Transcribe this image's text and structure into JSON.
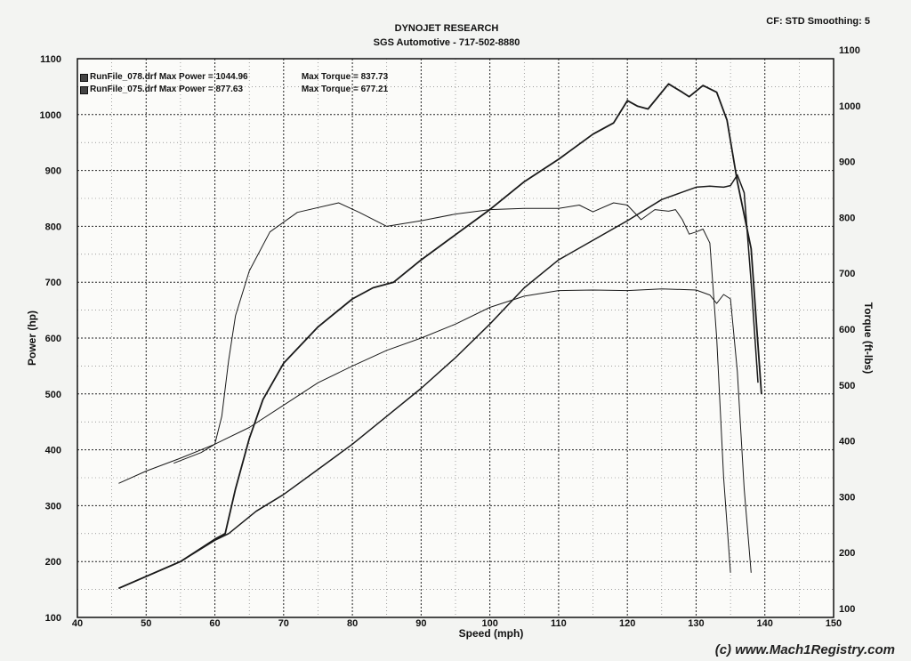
{
  "header": {
    "title": "DYNOJET RESEARCH",
    "subtitle": "SGS Automotive - 717-502-8880",
    "cf_label": "CF: STD  Smoothing: 5"
  },
  "legend": {
    "items": [
      {
        "file": "RunFile_078.drf",
        "power": "Max Power = 1044.96",
        "torque": "Max Torque = 837.73"
      },
      {
        "file": "RunFile_075.drf",
        "power": "Max Power = 877.63",
        "torque": "Max Torque = 677.21"
      }
    ]
  },
  "watermark": "(c) www.Mach1Registry.com",
  "chart_data": {
    "type": "line",
    "title": "DYNOJET RESEARCH",
    "subtitle": "SGS Automotive - 717-502-8880",
    "xlabel": "Speed (mph)",
    "ylabel": "Power (hp)",
    "y2label": "Torque (ft-lbs)",
    "xlim": [
      40,
      150
    ],
    "ylim": [
      100,
      1100
    ],
    "y2lim": [
      100,
      1100
    ],
    "xticks": [
      40,
      50,
      60,
      70,
      80,
      90,
      100,
      110,
      120,
      130,
      140,
      150
    ],
    "yticks": [
      100,
      200,
      300,
      400,
      500,
      600,
      700,
      800,
      900,
      1000,
      1100
    ],
    "y2ticks": [
      100,
      200,
      300,
      400,
      500,
      600,
      700,
      800,
      900,
      1000,
      1100
    ],
    "grid": true,
    "legend_position": "top-left",
    "series": [
      {
        "name": "RunFile_078.drf Power",
        "axis": "left",
        "style": "solid-heavy",
        "points": [
          [
            46,
            152
          ],
          [
            55,
            200
          ],
          [
            60,
            240
          ],
          [
            61.5,
            250
          ],
          [
            63,
            330
          ],
          [
            65,
            420
          ],
          [
            67,
            490
          ],
          [
            70,
            555
          ],
          [
            75,
            620
          ],
          [
            80,
            670
          ],
          [
            83,
            690
          ],
          [
            86,
            700
          ],
          [
            90,
            740
          ],
          [
            95,
            785
          ],
          [
            100,
            830
          ],
          [
            105,
            880
          ],
          [
            110,
            920
          ],
          [
            115,
            965
          ],
          [
            118,
            985
          ],
          [
            120,
            1025
          ],
          [
            121.5,
            1015
          ],
          [
            123,
            1010
          ],
          [
            126,
            1055
          ],
          [
            128,
            1040
          ],
          [
            129,
            1032
          ],
          [
            131,
            1052
          ],
          [
            133,
            1040
          ],
          [
            134.5,
            990
          ],
          [
            136,
            880
          ],
          [
            138,
            760
          ],
          [
            139.5,
            500
          ]
        ]
      },
      {
        "name": "RunFile_078.drf Torque",
        "axis": "right",
        "style": "solid-thin",
        "points": [
          [
            54,
            376
          ],
          [
            58,
            395
          ],
          [
            60,
            410
          ],
          [
            61,
            460
          ],
          [
            62,
            560
          ],
          [
            63,
            640
          ],
          [
            65,
            720
          ],
          [
            68,
            790
          ],
          [
            72,
            825
          ],
          [
            78,
            842
          ],
          [
            81,
            825
          ],
          [
            85,
            800
          ],
          [
            90,
            810
          ],
          [
            95,
            822
          ],
          [
            100,
            830
          ],
          [
            105,
            832
          ],
          [
            110,
            832
          ],
          [
            113,
            838
          ],
          [
            115,
            826
          ],
          [
            118,
            842
          ],
          [
            120,
            838
          ],
          [
            122,
            812
          ],
          [
            124,
            830
          ],
          [
            126,
            827
          ],
          [
            127,
            830
          ],
          [
            128,
            812
          ],
          [
            129,
            786
          ],
          [
            130,
            790
          ],
          [
            131,
            795
          ],
          [
            132,
            770
          ],
          [
            133,
            600
          ],
          [
            134,
            350
          ],
          [
            135,
            180
          ]
        ]
      },
      {
        "name": "RunFile_075.drf Power",
        "axis": "left",
        "style": "solid-medium",
        "points": [
          [
            46,
            152
          ],
          [
            55,
            200
          ],
          [
            60,
            238
          ],
          [
            62,
            250
          ],
          [
            66,
            290
          ],
          [
            70,
            320
          ],
          [
            75,
            365
          ],
          [
            80,
            410
          ],
          [
            85,
            460
          ],
          [
            90,
            510
          ],
          [
            95,
            565
          ],
          [
            100,
            625
          ],
          [
            105,
            690
          ],
          [
            110,
            740
          ],
          [
            115,
            775
          ],
          [
            120,
            810
          ],
          [
            125,
            848
          ],
          [
            130,
            870
          ],
          [
            132,
            872
          ],
          [
            134,
            870
          ],
          [
            135,
            873
          ],
          [
            136,
            892
          ],
          [
            137,
            860
          ],
          [
            138,
            700
          ],
          [
            139,
            520
          ]
        ]
      },
      {
        "name": "RunFile_075.drf Torque",
        "axis": "right",
        "style": "solid-thin",
        "points": [
          [
            46,
            340
          ],
          [
            50,
            362
          ],
          [
            55,
            385
          ],
          [
            60,
            410
          ],
          [
            65,
            440
          ],
          [
            70,
            480
          ],
          [
            75,
            520
          ],
          [
            80,
            550
          ],
          [
            85,
            578
          ],
          [
            90,
            600
          ],
          [
            95,
            625
          ],
          [
            100,
            655
          ],
          [
            105,
            675
          ],
          [
            110,
            685
          ],
          [
            115,
            686
          ],
          [
            120,
            685
          ],
          [
            125,
            688
          ],
          [
            130,
            686
          ],
          [
            132,
            677
          ],
          [
            133,
            662
          ],
          [
            134,
            678
          ],
          [
            135,
            670
          ],
          [
            136,
            540
          ],
          [
            137,
            330
          ],
          [
            138,
            180
          ]
        ]
      }
    ]
  }
}
